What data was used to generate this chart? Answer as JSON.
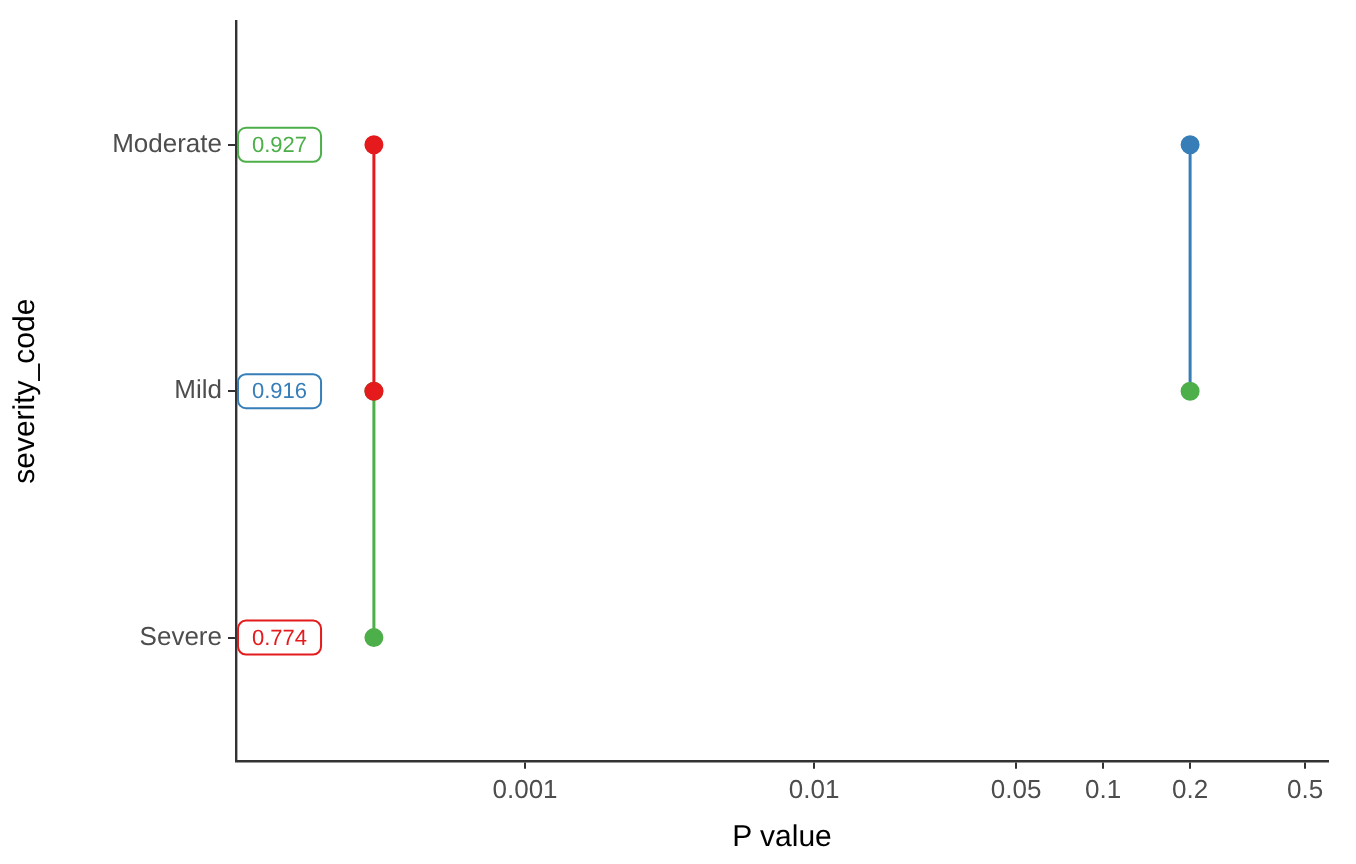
{
  "chart_data": {
    "type": "line",
    "orientation": "horizontal",
    "xlabel": "P value",
    "ylabel": "severity_code",
    "log": "x",
    "xlim": [
      0.0001,
      0.6
    ],
    "xticks": [
      0.001,
      0.01,
      0.05,
      0.1,
      0.2,
      0.5
    ],
    "categories": [
      "Moderate",
      "Mild",
      "Severe"
    ],
    "series": [
      {
        "color": "#4daf4a",
        "values": [
          null,
          0.0003,
          0.0003
        ],
        "colors": [
          null,
          "#4daf4a",
          "#4daf4a"
        ]
      },
      {
        "color": "#377eb8",
        "values": [
          0.2,
          0.2,
          null
        ],
        "colors": [
          "#377eb8",
          "#4daf4a",
          null
        ]
      },
      {
        "color": "#e41a1c",
        "values": [
          0.0003,
          0.0003,
          null
        ],
        "colors": [
          "#e41a1c",
          "#e41a1c",
          null
        ]
      }
    ],
    "annotations": [
      {
        "text": "0.927",
        "y": "Moderate"
      },
      {
        "text": "0.916",
        "y": "Mild"
      },
      {
        "text": "0.774",
        "y": "Severe"
      }
    ],
    "marker": "circle",
    "grid": false,
    "legend": false
  }
}
